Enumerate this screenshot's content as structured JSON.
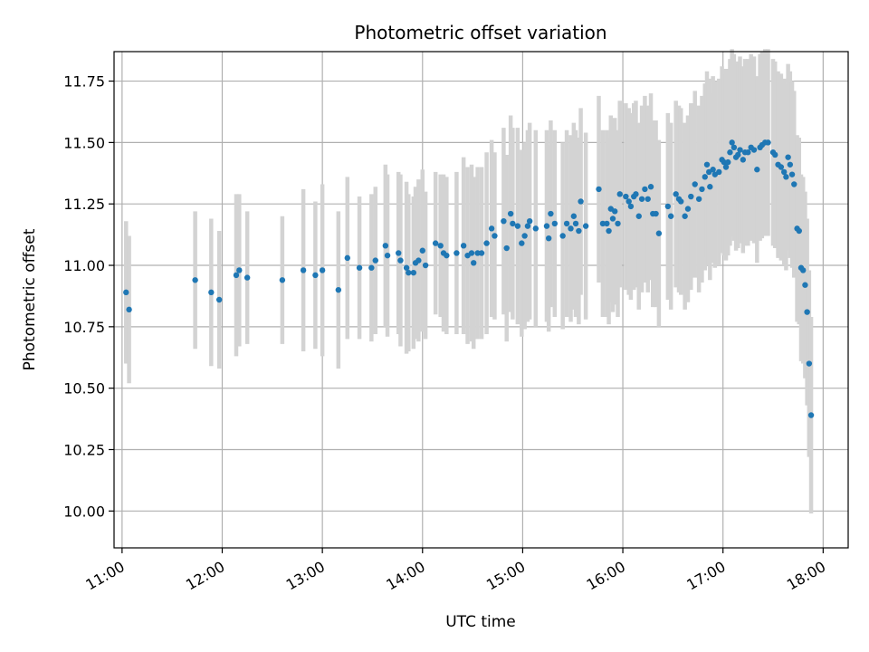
{
  "chart_data": {
    "type": "scatter",
    "title": "Photometric offset variation",
    "xlabel": "UTC time",
    "ylabel": "Photometric offset",
    "x_unit": "hours (UTC)",
    "xlim": [
      10.92,
      18.25
    ],
    "ylim": [
      9.85,
      11.87
    ],
    "grid": true,
    "legend": "none",
    "colors": {
      "points": "#1f77b4",
      "errorbars": "#d3d3d3",
      "grid": "#b0b0b0"
    },
    "x_ticks": [
      {
        "value": 11,
        "label": "11:00"
      },
      {
        "value": 12,
        "label": "12:00"
      },
      {
        "value": 13,
        "label": "13:00"
      },
      {
        "value": 14,
        "label": "14:00"
      },
      {
        "value": 15,
        "label": "15:00"
      },
      {
        "value": 16,
        "label": "16:00"
      },
      {
        "value": 17,
        "label": "17:00"
      },
      {
        "value": 18,
        "label": "18:00"
      }
    ],
    "y_ticks": [
      {
        "value": 10.0,
        "label": "10.00"
      },
      {
        "value": 10.25,
        "label": "10.25"
      },
      {
        "value": 10.5,
        "label": "10.50"
      },
      {
        "value": 10.75,
        "label": "10.75"
      },
      {
        "value": 11.0,
        "label": "11.00"
      },
      {
        "value": 11.25,
        "label": "11.25"
      },
      {
        "value": 11.5,
        "label": "11.50"
      },
      {
        "value": 11.75,
        "label": "11.75"
      }
    ],
    "points": [
      [
        11.04,
        10.89,
        0.29
      ],
      [
        11.07,
        10.82,
        0.3
      ],
      [
        11.73,
        10.94,
        0.28
      ],
      [
        11.89,
        10.89,
        0.3
      ],
      [
        11.97,
        10.86,
        0.28
      ],
      [
        12.14,
        10.96,
        0.33
      ],
      [
        12.17,
        10.98,
        0.31
      ],
      [
        12.25,
        10.95,
        0.27
      ],
      [
        12.6,
        10.94,
        0.26
      ],
      [
        12.81,
        10.98,
        0.33
      ],
      [
        12.93,
        10.96,
        0.3
      ],
      [
        13.0,
        10.98,
        0.35
      ],
      [
        13.16,
        10.9,
        0.32
      ],
      [
        13.25,
        11.03,
        0.33
      ],
      [
        13.37,
        10.99,
        0.29
      ],
      [
        13.49,
        10.99,
        0.3
      ],
      [
        13.53,
        11.02,
        0.3
      ],
      [
        13.63,
        11.08,
        0.33
      ],
      [
        13.65,
        11.04,
        0.33
      ],
      [
        13.76,
        11.05,
        0.33
      ],
      [
        13.78,
        11.02,
        0.35
      ],
      [
        13.84,
        10.99,
        0.35
      ],
      [
        13.86,
        10.97,
        0.32
      ],
      [
        13.91,
        10.97,
        0.31
      ],
      [
        13.93,
        11.01,
        0.31
      ],
      [
        13.96,
        11.02,
        0.33
      ],
      [
        14.0,
        11.06,
        0.33
      ],
      [
        14.03,
        11.0,
        0.3
      ],
      [
        14.13,
        11.09,
        0.29
      ],
      [
        14.18,
        11.08,
        0.29
      ],
      [
        14.21,
        11.05,
        0.32
      ],
      [
        14.24,
        11.04,
        0.32
      ],
      [
        14.34,
        11.05,
        0.33
      ],
      [
        14.41,
        11.08,
        0.36
      ],
      [
        14.45,
        11.04,
        0.36
      ],
      [
        14.49,
        11.05,
        0.36
      ],
      [
        14.51,
        11.01,
        0.35
      ],
      [
        14.55,
        11.05,
        0.35
      ],
      [
        14.59,
        11.05,
        0.35
      ],
      [
        14.64,
        11.09,
        0.37
      ],
      [
        14.69,
        11.15,
        0.36
      ],
      [
        14.72,
        11.12,
        0.34
      ],
      [
        14.81,
        11.18,
        0.38
      ],
      [
        14.84,
        11.07,
        0.38
      ],
      [
        14.88,
        11.21,
        0.4
      ],
      [
        14.9,
        11.17,
        0.39
      ],
      [
        14.95,
        11.16,
        0.4
      ],
      [
        14.99,
        11.09,
        0.38
      ],
      [
        15.02,
        11.12,
        0.38
      ],
      [
        15.05,
        11.16,
        0.39
      ],
      [
        15.07,
        11.18,
        0.4
      ],
      [
        15.13,
        11.15,
        0.4
      ],
      [
        15.24,
        11.16,
        0.39
      ],
      [
        15.26,
        11.11,
        0.38
      ],
      [
        15.28,
        11.21,
        0.38
      ],
      [
        15.32,
        11.17,
        0.38
      ],
      [
        15.4,
        11.12,
        0.38
      ],
      [
        15.44,
        11.17,
        0.38
      ],
      [
        15.48,
        11.15,
        0.38
      ],
      [
        15.51,
        11.2,
        0.38
      ],
      [
        15.53,
        11.17,
        0.38
      ],
      [
        15.56,
        11.14,
        0.38
      ],
      [
        15.58,
        11.26,
        0.38
      ],
      [
        15.63,
        11.16,
        0.38
      ],
      [
        15.76,
        11.31,
        0.38
      ],
      [
        15.8,
        11.17,
        0.38
      ],
      [
        15.84,
        11.17,
        0.38
      ],
      [
        15.86,
        11.14,
        0.38
      ],
      [
        15.88,
        11.23,
        0.38
      ],
      [
        15.9,
        11.19,
        0.38
      ],
      [
        15.92,
        11.22,
        0.38
      ],
      [
        15.95,
        11.17,
        0.38
      ],
      [
        15.97,
        11.29,
        0.38
      ],
      [
        16.03,
        11.28,
        0.38
      ],
      [
        16.06,
        11.26,
        0.38
      ],
      [
        16.08,
        11.24,
        0.38
      ],
      [
        16.11,
        11.28,
        0.38
      ],
      [
        16.13,
        11.29,
        0.38
      ],
      [
        16.16,
        11.2,
        0.38
      ],
      [
        16.19,
        11.27,
        0.38
      ],
      [
        16.22,
        11.31,
        0.38
      ],
      [
        16.25,
        11.27,
        0.38
      ],
      [
        16.28,
        11.32,
        0.38
      ],
      [
        16.3,
        11.21,
        0.38
      ],
      [
        16.33,
        11.21,
        0.38
      ],
      [
        16.36,
        11.13,
        0.38
      ],
      [
        16.45,
        11.24,
        0.38
      ],
      [
        16.48,
        11.2,
        0.38
      ],
      [
        16.53,
        11.29,
        0.38
      ],
      [
        16.56,
        11.27,
        0.38
      ],
      [
        16.58,
        11.26,
        0.38
      ],
      [
        16.62,
        11.2,
        0.38
      ],
      [
        16.65,
        11.23,
        0.38
      ],
      [
        16.68,
        11.28,
        0.38
      ],
      [
        16.72,
        11.33,
        0.38
      ],
      [
        16.76,
        11.27,
        0.38
      ],
      [
        16.79,
        11.31,
        0.38
      ],
      [
        16.82,
        11.36,
        0.38
      ],
      [
        16.84,
        11.41,
        0.38
      ],
      [
        16.86,
        11.38,
        0.38
      ],
      [
        16.87,
        11.32,
        0.38
      ],
      [
        16.9,
        11.39,
        0.38
      ],
      [
        16.92,
        11.37,
        0.38
      ],
      [
        16.96,
        11.38,
        0.38
      ],
      [
        16.99,
        11.43,
        0.38
      ],
      [
        17.01,
        11.42,
        0.38
      ],
      [
        17.03,
        11.4,
        0.38
      ],
      [
        17.05,
        11.42,
        0.38
      ],
      [
        17.07,
        11.46,
        0.38
      ],
      [
        17.09,
        11.5,
        0.38
      ],
      [
        17.11,
        11.48,
        0.38
      ],
      [
        17.13,
        11.44,
        0.38
      ],
      [
        17.15,
        11.45,
        0.38
      ],
      [
        17.17,
        11.47,
        0.38
      ],
      [
        17.2,
        11.43,
        0.38
      ],
      [
        17.22,
        11.46,
        0.38
      ],
      [
        17.25,
        11.46,
        0.38
      ],
      [
        17.28,
        11.48,
        0.38
      ],
      [
        17.31,
        11.47,
        0.38
      ],
      [
        17.34,
        11.39,
        0.38
      ],
      [
        17.37,
        11.48,
        0.38
      ],
      [
        17.39,
        11.49,
        0.38
      ],
      [
        17.42,
        11.5,
        0.38
      ],
      [
        17.45,
        11.5,
        0.38
      ],
      [
        17.5,
        11.46,
        0.38
      ],
      [
        17.52,
        11.45,
        0.38
      ],
      [
        17.55,
        11.41,
        0.38
      ],
      [
        17.58,
        11.4,
        0.38
      ],
      [
        17.61,
        11.38,
        0.38
      ],
      [
        17.63,
        11.36,
        0.38
      ],
      [
        17.65,
        11.44,
        0.38
      ],
      [
        17.67,
        11.41,
        0.38
      ],
      [
        17.69,
        11.37,
        0.38
      ],
      [
        17.71,
        11.33,
        0.38
      ],
      [
        17.74,
        11.15,
        0.38
      ],
      [
        17.76,
        11.14,
        0.38
      ],
      [
        17.78,
        10.99,
        0.38
      ],
      [
        17.8,
        10.98,
        0.38
      ],
      [
        17.82,
        10.92,
        0.38
      ],
      [
        17.84,
        10.81,
        0.38
      ],
      [
        17.86,
        10.6,
        0.38
      ],
      [
        17.88,
        10.39,
        0.4
      ]
    ]
  }
}
